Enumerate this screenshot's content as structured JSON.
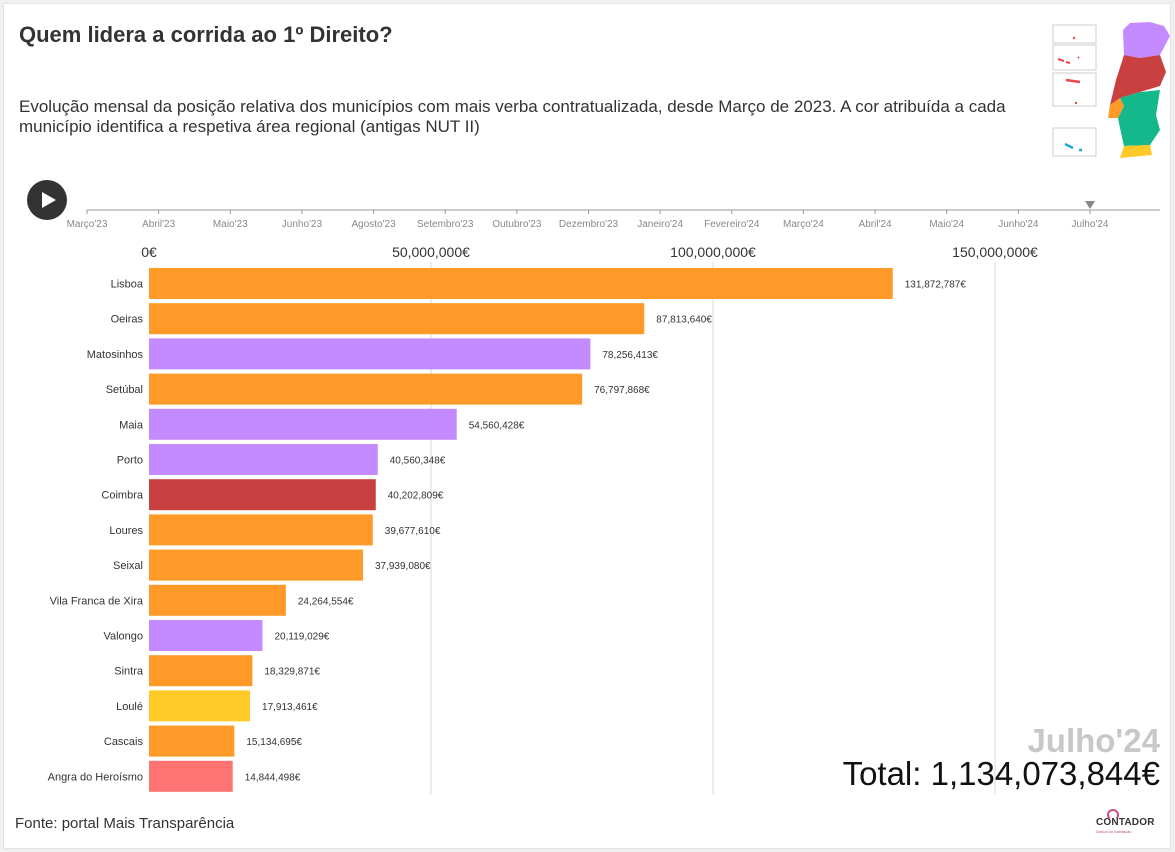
{
  "header": {
    "title": "Quem lidera a corrida ao 1º Direito?",
    "subtitle": "Evolução mensal da posição relativa dos municípios com mais verba contratualizada, desde Março de 2023. A cor atribuída a cada município identifica a respetiva área regional (antigas NUT II)"
  },
  "timeline": {
    "months": [
      "Março'23",
      "Abril'23",
      "Maio'23",
      "Junho'23",
      "Agosto'23",
      "Setembro'23",
      "Outubro'23",
      "Dezembro'23",
      "Janeiro'24",
      "Fevereiro'24",
      "Março'24",
      "Abril'24",
      "Maio'24",
      "Junho'24",
      "Julho'24"
    ],
    "current_index": 14
  },
  "play_button": {
    "icon": "play-icon"
  },
  "colors": {
    "lisboa_region": "#ff9a29",
    "norte_region": "#c48aff",
    "centro_region": "#c94040",
    "algarve_region": "#ffca28",
    "acores_region": "#ff7373",
    "alentejo_region": "#14b88a",
    "madeira_region": "#e84848",
    "acores_map": "#1fa6e0"
  },
  "chart_data": {
    "type": "bar",
    "orientation": "horizontal",
    "axis_ticks": [
      "0€",
      "50,000,000€",
      "100,000,000€",
      "150,000,000€"
    ],
    "axis_tick_values": [
      0,
      50000000,
      100000000,
      150000000
    ],
    "xlim": [
      0,
      160000000
    ],
    "grid": true,
    "categories": [
      "Lisboa",
      "Oeiras",
      "Matosinhos",
      "Setúbal",
      "Maia",
      "Porto",
      "Coimbra",
      "Loures",
      "Seixal",
      "Vila Franca de Xira",
      "Valongo",
      "Sintra",
      "Loulé",
      "Cascais",
      "Angra do Heroísmo"
    ],
    "values": [
      131872787,
      87813640,
      78256413,
      76797868,
      54560428,
      40560348,
      40202809,
      39677610,
      37939080,
      24264554,
      20119029,
      18329871,
      17913461,
      15134695,
      14844498
    ],
    "value_labels": [
      "131,872,787€",
      "87,813,640€",
      "78,256,413€",
      "76,797,868€",
      "54,560,428€",
      "40,560,348€",
      "40,202,809€",
      "39,677,610€",
      "37,939,080€",
      "24,264,554€",
      "20,119,029€",
      "18,329,871€",
      "17,913,461€",
      "15,134,695€",
      "14,844,498€"
    ],
    "regions": [
      "lisboa_region",
      "lisboa_region",
      "norte_region",
      "lisboa_region",
      "norte_region",
      "norte_region",
      "centro_region",
      "lisboa_region",
      "lisboa_region",
      "lisboa_region",
      "norte_region",
      "lisboa_region",
      "algarve_region",
      "lisboa_region",
      "acores_region"
    ]
  },
  "summary": {
    "current_month": "Julho'24",
    "total_label": "Total: 1,134,073,844€"
  },
  "footer": {
    "source": "Fonte: portal Mais Transparência",
    "logo_text": "CONTADOR",
    "logo_subtext": "Dados do habitação"
  }
}
